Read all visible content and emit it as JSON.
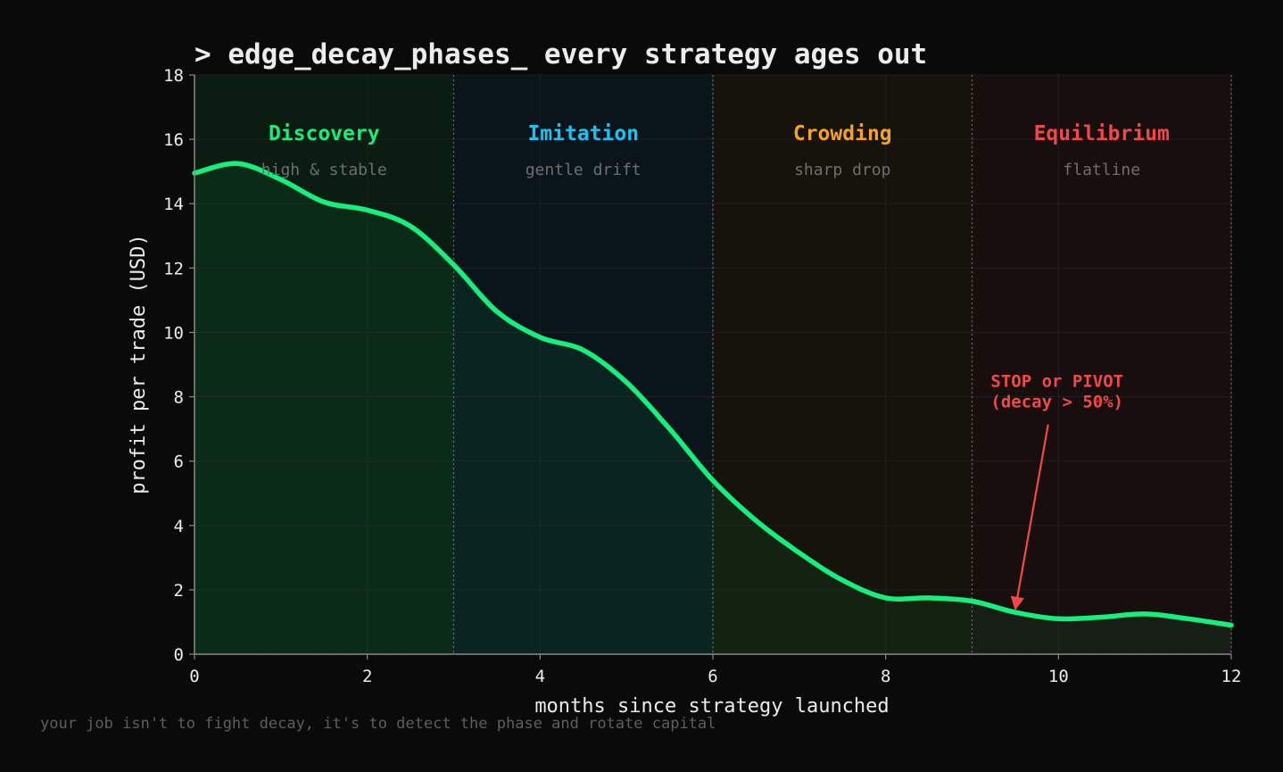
{
  "chart_data": {
    "type": "line",
    "title": "> edge_decay_phases_  every strategy ages out",
    "xlabel": "months since strategy launched",
    "ylabel": "profit per trade (USD)",
    "xlim": [
      0,
      12
    ],
    "ylim": [
      0,
      18
    ],
    "xticks": [
      0,
      2,
      4,
      6,
      8,
      10,
      12
    ],
    "yticks": [
      0,
      2,
      4,
      6,
      8,
      10,
      12,
      14,
      16,
      18
    ],
    "grid": true,
    "series": [
      {
        "color": "#14f07d",
        "x": [
          0,
          0.5,
          1,
          1.5,
          2,
          2.5,
          3,
          3.5,
          4,
          4.5,
          5,
          5.5,
          6,
          6.5,
          7,
          7.5,
          8,
          8.5,
          9,
          9.5,
          10,
          10.5,
          11,
          11.5,
          12
        ],
        "y": [
          14.95,
          15.25,
          14.75,
          14.05,
          13.8,
          13.3,
          12.1,
          10.65,
          9.85,
          9.45,
          8.45,
          7.0,
          5.4,
          4.15,
          3.15,
          2.3,
          1.75,
          1.75,
          1.65,
          1.3,
          1.1,
          1.15,
          1.25,
          1.1,
          0.9
        ]
      }
    ],
    "phases": [
      {
        "name": "Discovery",
        "desc": "high & stable",
        "x_start": 0,
        "x_end": 3,
        "color": "#14f07d",
        "bg": "#0b1d12"
      },
      {
        "name": "Imitation",
        "desc": "gentle drift",
        "x_start": 3,
        "x_end": 6,
        "color": "#1ec2f0",
        "bg": "#0a151b"
      },
      {
        "name": "Crowding",
        "desc": "sharp drop",
        "x_start": 6,
        "x_end": 9,
        "color": "#f5a21f",
        "bg": "#15130a"
      },
      {
        "name": "Equilibrium",
        "desc": "flatline",
        "x_start": 9,
        "x_end": 12,
        "color": "#f14848",
        "bg": "#180e0e"
      }
    ],
    "annotation": {
      "lines": [
        "STOP or PIVOT",
        "(decay > 50%)"
      ],
      "color": "#f14848",
      "text_at": [
        10.5,
        8.3
      ],
      "arrow_to": [
        9.5,
        1.4
      ]
    }
  },
  "footer": "your job isn't to fight decay, it's to detect the phase and rotate capital"
}
